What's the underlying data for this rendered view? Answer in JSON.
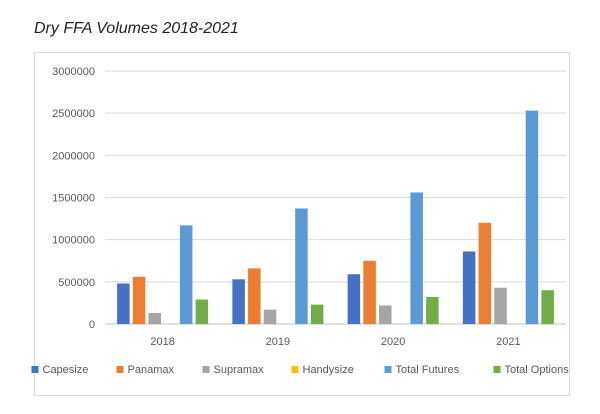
{
  "caption": "Dry FFA Volumes 2018-2021",
  "chart_data": {
    "type": "bar",
    "title": "Dry FFA Volumes 2018-2021",
    "xlabel": "",
    "ylabel": "",
    "categories": [
      "2018",
      "2019",
      "2020",
      "2021"
    ],
    "ylim": [
      0,
      3000000
    ],
    "yticks": [
      0,
      500000,
      1000000,
      1500000,
      2000000,
      2500000,
      3000000
    ],
    "ytick_labels": [
      "0",
      "500000",
      "1000000",
      "1500000",
      "2000000",
      "2500000",
      "3000000"
    ],
    "grid": true,
    "legend_position": "bottom",
    "series": [
      {
        "name": "Capesize",
        "color": "#4472c4",
        "values": [
          480000,
          530000,
          590000,
          860000
        ]
      },
      {
        "name": "Panamax",
        "color": "#ed7d31",
        "values": [
          560000,
          660000,
          750000,
          1200000
        ]
      },
      {
        "name": "Supramax",
        "color": "#a5a5a5",
        "values": [
          130000,
          170000,
          220000,
          430000
        ]
      },
      {
        "name": "Handysize",
        "color": "#ffc000",
        "values": [
          0,
          0,
          0,
          0
        ]
      },
      {
        "name": "Total Futures",
        "color": "#5b9bd5",
        "values": [
          1170000,
          1370000,
          1560000,
          2530000
        ]
      },
      {
        "name": "Total Options",
        "color": "#70ad47",
        "values": [
          290000,
          230000,
          320000,
          400000
        ]
      }
    ]
  }
}
